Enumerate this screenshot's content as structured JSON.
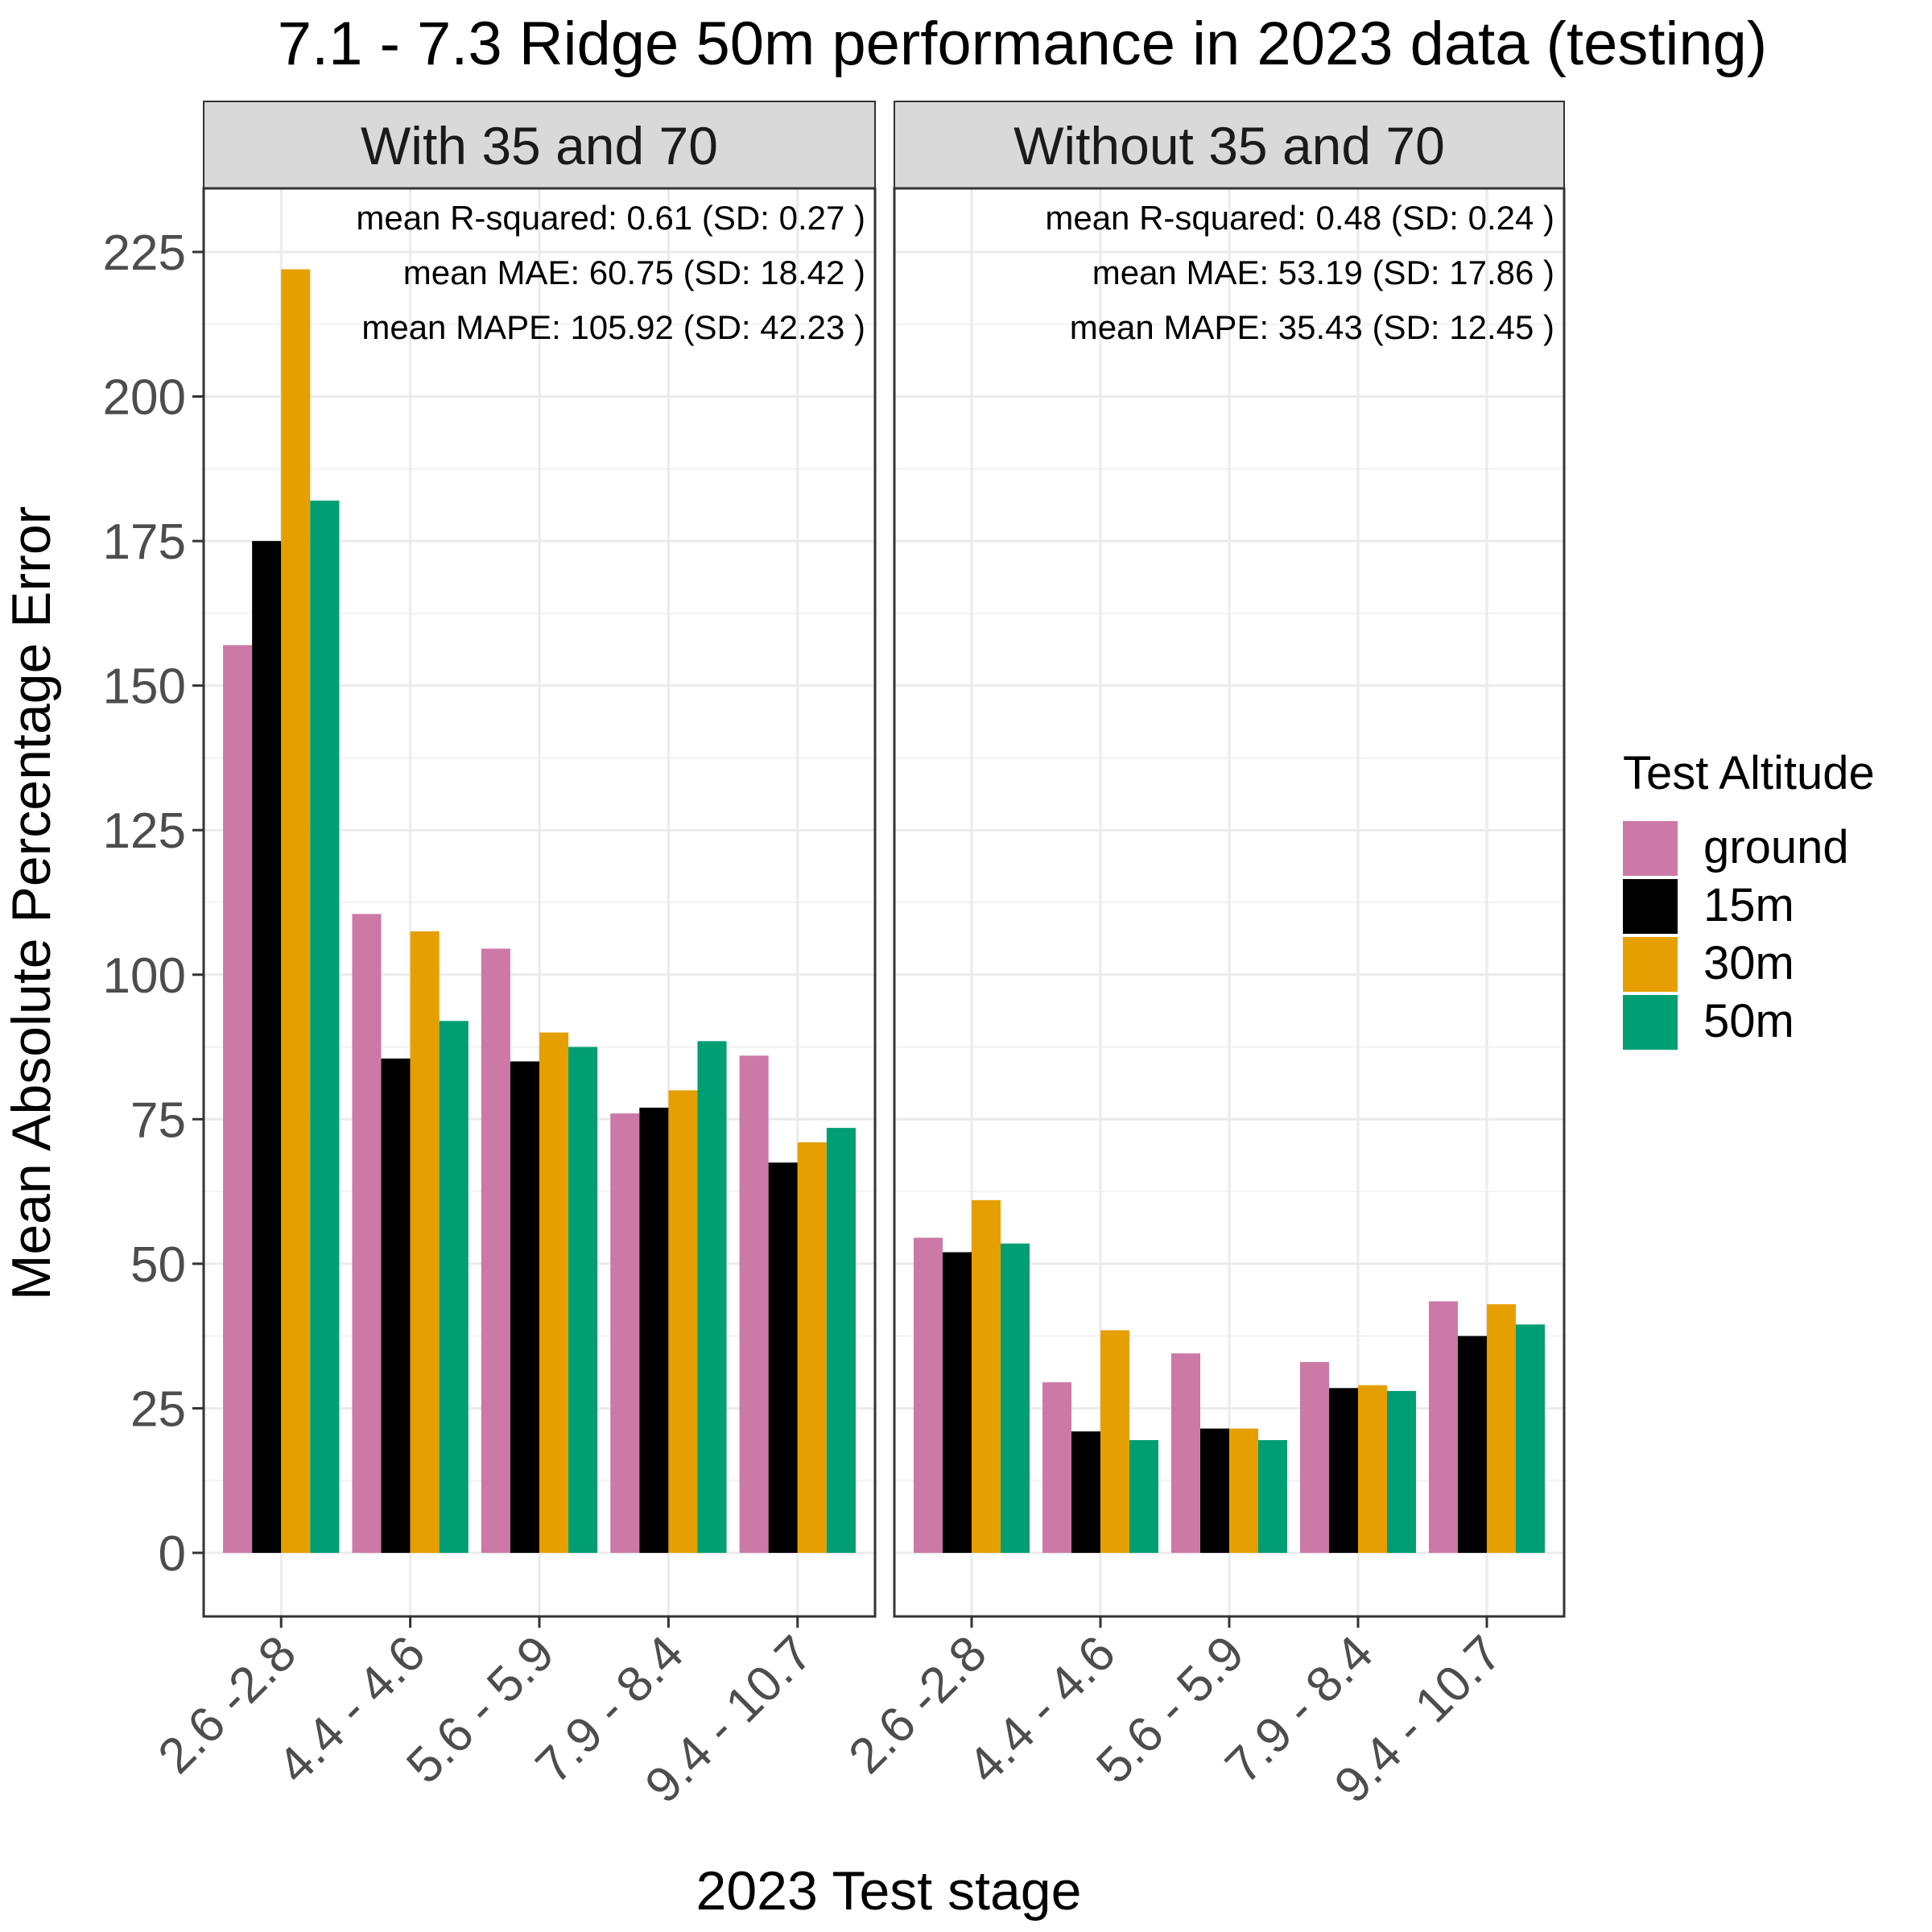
{
  "chart_data": {
    "type": "bar",
    "title": "7.1 - 7.3 Ridge 50m performance in 2023 data (testing)",
    "xlabel": "2023 Test stage",
    "ylabel": "Mean Absolute Percentage Error",
    "ylim": [
      -11,
      236
    ],
    "yticks": [
      0,
      25,
      50,
      75,
      100,
      125,
      150,
      175,
      200,
      225
    ],
    "grid": true,
    "categories": [
      "2.6 -2.8",
      "4.4 - 4.6",
      "5.6 - 5.9",
      "7.9 - 8.4",
      "9.4 - 10.7"
    ],
    "legend": {
      "title": "Test Altitude",
      "position": "right",
      "items": [
        {
          "label": "ground",
          "color": "#CC79A7"
        },
        {
          "label": "15m",
          "color": "#000000"
        },
        {
          "label": "30m",
          "color": "#E69F00"
        },
        {
          "label": "50m",
          "color": "#009E73"
        }
      ]
    },
    "panels": [
      {
        "title": "With 35 and 70",
        "annotations": [
          "mean R-squared:  0.61  (SD:  0.27 )",
          "mean MAE:  60.75  (SD:  18.42 )",
          "mean MAPE:  105.92  (SD:  42.23 )"
        ],
        "series": [
          {
            "name": "ground",
            "values": [
              157,
              110.5,
              104.5,
              76,
              86
            ]
          },
          {
            "name": "15m",
            "values": [
              175,
              85.5,
              85,
              77,
              67.5
            ]
          },
          {
            "name": "30m",
            "values": [
              222,
              107.5,
              90,
              80,
              71
            ]
          },
          {
            "name": "50m",
            "values": [
              182,
              92,
              87.5,
              88.5,
              73.5
            ]
          }
        ]
      },
      {
        "title": "Without 35 and 70",
        "annotations": [
          "mean R-squared:  0.48  (SD:  0.24 )",
          "mean MAE:  53.19  (SD:  17.86 )",
          "mean MAPE:  35.43  (SD:  12.45 )"
        ],
        "series": [
          {
            "name": "ground",
            "values": [
              54.5,
              29.5,
              34.5,
              33,
              43.5
            ]
          },
          {
            "name": "15m",
            "values": [
              52,
              21,
              21.5,
              28.5,
              37.5
            ]
          },
          {
            "name": "30m",
            "values": [
              61,
              38.5,
              21.5,
              29,
              43
            ]
          },
          {
            "name": "50m",
            "values": [
              53.5,
              19.5,
              19.5,
              28,
              39.5
            ]
          }
        ]
      }
    ]
  }
}
